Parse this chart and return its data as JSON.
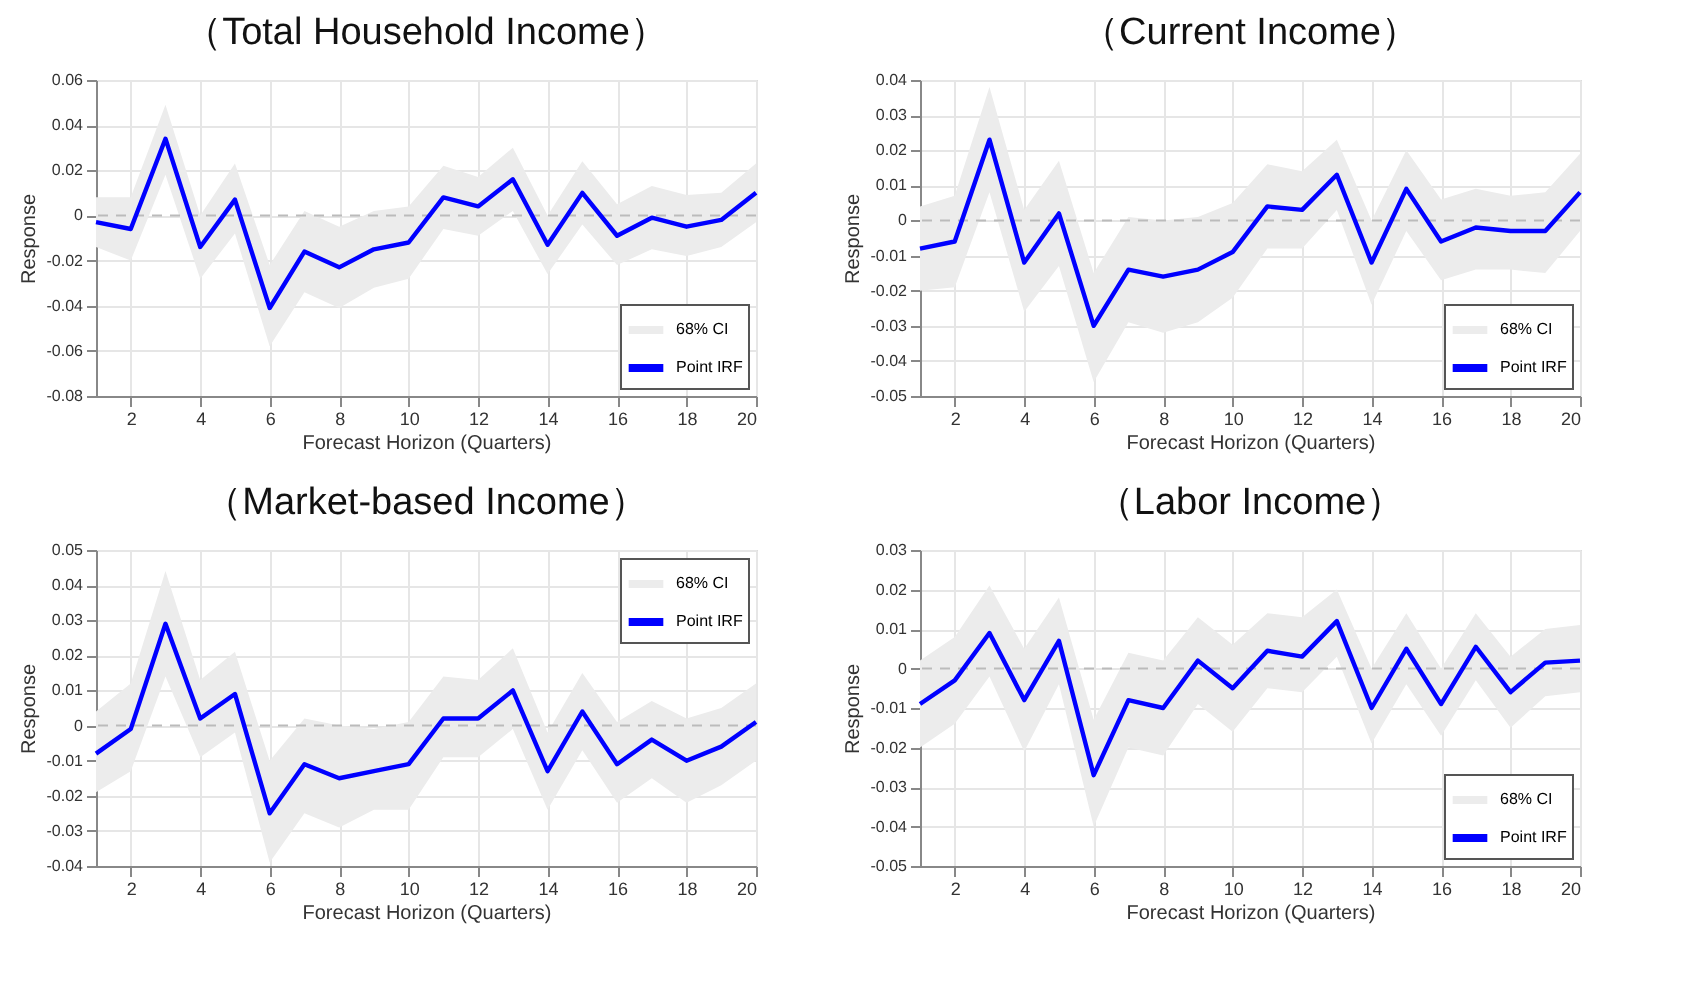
{
  "chart_data": [
    {
      "type": "line",
      "title": "（Total Household Income）",
      "xlabel": "Forecast Horizon (Quarters)",
      "ylabel": "Response",
      "annotations": [
        "68% CI"
      ],
      "x": [
        1,
        2,
        3,
        4,
        5,
        6,
        7,
        8,
        9,
        10,
        11,
        12,
        13,
        14,
        15,
        16,
        17,
        18,
        19,
        20
      ],
      "xlim": [
        1,
        20
      ],
      "xticks": [
        2,
        4,
        6,
        8,
        10,
        12,
        14,
        16,
        18,
        20
      ],
      "ylim": [
        -0.08,
        0.06
      ],
      "yticks": [
        -0.08,
        -0.06,
        -0.04,
        -0.02,
        0,
        0.02,
        0.04,
        0.06
      ],
      "grid": true,
      "legend": "bottom right",
      "ref_lines": [
        {
          "axis": "y",
          "value": 0,
          "color": "#bbbbbb",
          "line_style": "dashed"
        }
      ],
      "series": [
        {
          "name": "Point IRF",
          "color": "#0000ff",
          "values": [
            -0.003,
            -0.006,
            0.034,
            -0.014,
            0.007,
            -0.041,
            -0.016,
            -0.023,
            -0.015,
            -0.012,
            0.008,
            0.004,
            0.016,
            -0.013,
            0.01,
            -0.009,
            -0.001,
            -0.005,
            -0.002,
            0.01
          ],
          "upper": [
            0.008,
            0.008,
            0.049,
            0.0,
            0.023,
            -0.022,
            0.002,
            -0.005,
            0.002,
            0.004,
            0.022,
            0.017,
            0.03,
            0.0,
            0.024,
            0.005,
            0.013,
            0.009,
            0.01,
            0.023
          ],
          "lower": [
            -0.014,
            -0.02,
            0.018,
            -0.028,
            -0.008,
            -0.058,
            -0.034,
            -0.041,
            -0.032,
            -0.028,
            -0.006,
            -0.009,
            0.002,
            -0.026,
            -0.004,
            -0.022,
            -0.015,
            -0.018,
            -0.014,
            -0.003
          ]
        }
      ]
    },
    {
      "type": "line",
      "title": "（Current Income）",
      "xlabel": "Forecast Horizon (Quarters)",
      "ylabel": "Response",
      "annotations": [
        "68% CI"
      ],
      "x": [
        1,
        2,
        3,
        4,
        5,
        6,
        7,
        8,
        9,
        10,
        11,
        12,
        13,
        14,
        15,
        16,
        17,
        18,
        19,
        20
      ],
      "xlim": [
        1,
        20
      ],
      "xticks": [
        2,
        4,
        6,
        8,
        10,
        12,
        14,
        16,
        18,
        20
      ],
      "ylim": [
        -0.05,
        0.04
      ],
      "yticks": [
        -0.05,
        -0.04,
        -0.03,
        -0.02,
        -0.01,
        0,
        0.01,
        0.02,
        0.03,
        0.04
      ],
      "grid": true,
      "legend": "bottom right",
      "ref_lines": [
        {
          "axis": "y",
          "value": 0,
          "color": "#bbbbbb",
          "line_style": "dashed"
        }
      ],
      "series": [
        {
          "name": "Point IRF",
          "color": "#0000ff",
          "values": [
            -0.008,
            -0.006,
            0.023,
            -0.012,
            0.002,
            -0.03,
            -0.014,
            -0.016,
            -0.014,
            -0.009,
            0.004,
            0.003,
            0.013,
            -0.012,
            0.009,
            -0.006,
            -0.002,
            -0.003,
            -0.003,
            0.008
          ],
          "upper": [
            0.004,
            0.007,
            0.038,
            0.003,
            0.017,
            -0.015,
            0.001,
            0.0,
            0.001,
            0.005,
            0.016,
            0.014,
            0.023,
            0.0,
            0.02,
            0.006,
            0.009,
            0.007,
            0.008,
            0.019
          ],
          "lower": [
            -0.02,
            -0.019,
            0.008,
            -0.026,
            -0.013,
            -0.046,
            -0.029,
            -0.032,
            -0.029,
            -0.022,
            -0.008,
            -0.008,
            0.003,
            -0.024,
            -0.003,
            -0.017,
            -0.014,
            -0.014,
            -0.015,
            -0.003
          ]
        }
      ]
    },
    {
      "type": "line",
      "title": "（Market-based Income）",
      "xlabel": "Forecast Horizon (Quarters)",
      "ylabel": "Response",
      "annotations": [
        "68% CI"
      ],
      "x": [
        1,
        2,
        3,
        4,
        5,
        6,
        7,
        8,
        9,
        10,
        11,
        12,
        13,
        14,
        15,
        16,
        17,
        18,
        19,
        20
      ],
      "xlim": [
        1,
        20
      ],
      "xticks": [
        2,
        4,
        6,
        8,
        10,
        12,
        14,
        16,
        18,
        20
      ],
      "ylim": [
        -0.04,
        0.05
      ],
      "yticks": [
        -0.04,
        -0.03,
        -0.02,
        -0.01,
        0,
        0.01,
        0.02,
        0.03,
        0.04,
        0.05
      ],
      "grid": true,
      "legend": "top right",
      "ref_lines": [
        {
          "axis": "y",
          "value": 0,
          "color": "#bbbbbb",
          "line_style": "dashed"
        }
      ],
      "series": [
        {
          "name": "Point IRF",
          "color": "#0000ff",
          "values": [
            -0.008,
            -0.001,
            0.029,
            0.002,
            0.009,
            -0.025,
            -0.011,
            -0.015,
            -0.013,
            -0.011,
            0.002,
            0.002,
            0.01,
            -0.013,
            0.004,
            -0.011,
            -0.004,
            -0.01,
            -0.006,
            0.001
          ],
          "upper": [
            0.004,
            0.012,
            0.044,
            0.013,
            0.021,
            -0.01,
            0.002,
            0.0,
            -0.001,
            0.001,
            0.014,
            0.013,
            0.022,
            -0.002,
            0.015,
            0.001,
            0.007,
            0.002,
            0.005,
            0.012
          ],
          "lower": [
            -0.019,
            -0.013,
            0.014,
            -0.009,
            -0.002,
            -0.039,
            -0.025,
            -0.029,
            -0.024,
            -0.024,
            -0.009,
            -0.009,
            -0.001,
            -0.024,
            -0.007,
            -0.022,
            -0.015,
            -0.022,
            -0.017,
            -0.01
          ]
        }
      ]
    },
    {
      "type": "line",
      "title": "（Labor Income）",
      "xlabel": "Forecast Horizon (Quarters)",
      "ylabel": "Response",
      "annotations": [
        "68% CI"
      ],
      "x": [
        1,
        2,
        3,
        4,
        5,
        6,
        7,
        8,
        9,
        10,
        11,
        12,
        13,
        14,
        15,
        16,
        17,
        18,
        19,
        20
      ],
      "xlim": [
        1,
        20
      ],
      "xticks": [
        2,
        4,
        6,
        8,
        10,
        12,
        14,
        16,
        18,
        20
      ],
      "ylim": [
        -0.05,
        0.03
      ],
      "yticks": [
        -0.05,
        -0.04,
        -0.03,
        -0.02,
        -0.01,
        0,
        0.01,
        0.02,
        0.03
      ],
      "grid": true,
      "legend": "bottom right",
      "ref_lines": [
        {
          "axis": "y",
          "value": 0,
          "color": "#bbbbbb",
          "line_style": "dashed"
        }
      ],
      "series": [
        {
          "name": "Point IRF",
          "color": "#0000ff",
          "values": [
            -0.009,
            -0.003,
            0.009,
            -0.008,
            0.007,
            -0.027,
            -0.008,
            -0.01,
            0.002,
            -0.005,
            0.0045,
            0.003,
            0.012,
            -0.01,
            0.005,
            -0.009,
            0.0055,
            -0.006,
            0.0015,
            0.002
          ],
          "upper": [
            0.002,
            0.008,
            0.021,
            0.005,
            0.018,
            -0.013,
            0.004,
            0.002,
            0.013,
            0.006,
            0.014,
            0.013,
            0.02,
            0.0,
            0.014,
            0.0,
            0.014,
            0.003,
            0.01,
            0.011
          ],
          "lower": [
            -0.02,
            -0.014,
            -0.002,
            -0.021,
            -0.004,
            -0.04,
            -0.02,
            -0.022,
            -0.009,
            -0.016,
            -0.005,
            -0.006,
            0.003,
            -0.019,
            -0.004,
            -0.017,
            -0.003,
            -0.015,
            -0.007,
            -0.006
          ]
        }
      ]
    }
  ]
}
